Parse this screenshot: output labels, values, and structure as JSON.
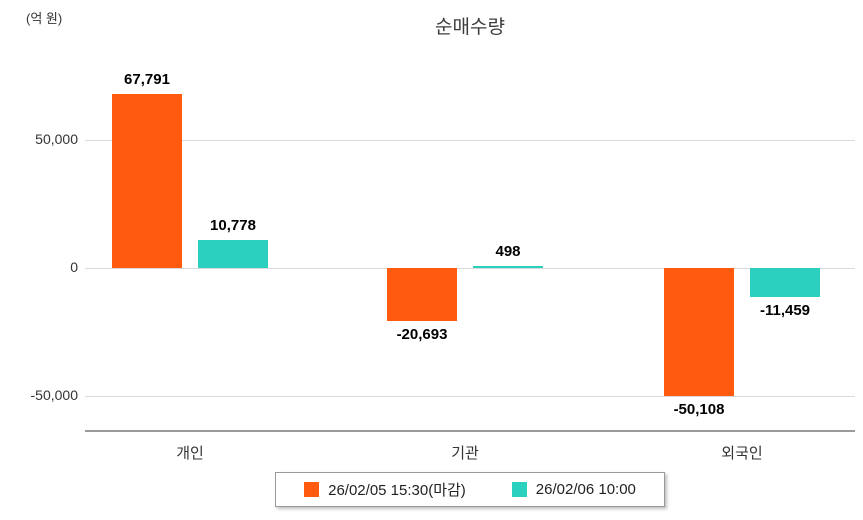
{
  "chart_data": {
    "type": "bar",
    "title": "순매수량",
    "unit_label": "(억 원)",
    "categories": [
      "개인",
      "기관",
      "외국인"
    ],
    "series": [
      {
        "name": "26/02/05 15:30(마감)",
        "color": "#ff5a0f",
        "values": [
          67791,
          -20693,
          -50108
        ],
        "value_labels": [
          "67,791",
          "-20,693",
          "-50,108"
        ]
      },
      {
        "name": "26/02/06 10:00",
        "color": "#2cd0bf",
        "values": [
          10778,
          498,
          -11459
        ],
        "value_labels": [
          "10,778",
          "498",
          "-11,459"
        ]
      }
    ],
    "y_ticks": [
      {
        "value": 50000,
        "label": "50,000"
      },
      {
        "value": 0,
        "label": "0"
      },
      {
        "value": -50000,
        "label": "-50,000"
      }
    ],
    "ylim": [
      -70000,
      90000
    ],
    "grid": true,
    "legend_position": "bottom"
  }
}
